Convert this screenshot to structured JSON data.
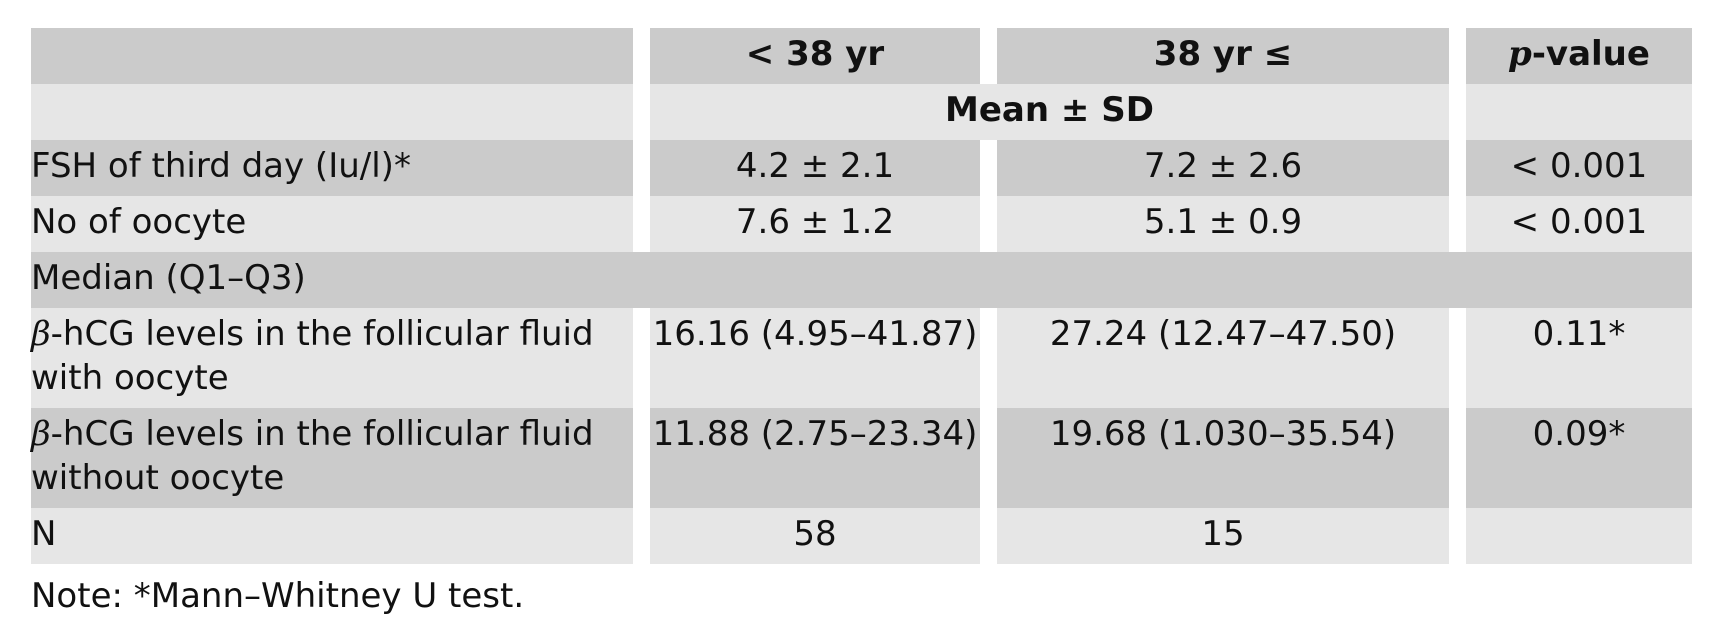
{
  "header": {
    "col1": "",
    "col2": "< 38 yr",
    "col3": "38 yr ≤",
    "col4_italic": "p",
    "col4_rest": "-value"
  },
  "subheader": {
    "mean_sd": "Mean ± SD"
  },
  "rows_mean": [
    {
      "label": "FSH of third day (Iu/l)*",
      "a": "4.2 ± 2.1",
      "b": "7.2 ± 2.6",
      "p": "< 0.001"
    },
    {
      "label": "No of oocyte",
      "a": "7.6 ± 1.2",
      "b": "5.1 ± 0.9",
      "p": "< 0.001"
    }
  ],
  "median_header": "Median (Q1–Q3)",
  "rows_median": [
    {
      "beta": "β",
      "label": "-hCG levels in the follicular fluid with oocyte",
      "a": "16.16 (4.95–41.87)",
      "b": "27.24 (12.47–47.50)",
      "p": "0.11*"
    },
    {
      "beta": "β",
      "label": "-hCG levels in the follicular fluid without oocyte",
      "a": "11.88 (2.75–23.34)",
      "b": "19.68 (1.030–35.54)",
      "p": "0.09*"
    }
  ],
  "n_row": {
    "label": "N",
    "a": "58",
    "b": "15",
    "p": ""
  },
  "note": "Note: *Mann–Whitney U test."
}
